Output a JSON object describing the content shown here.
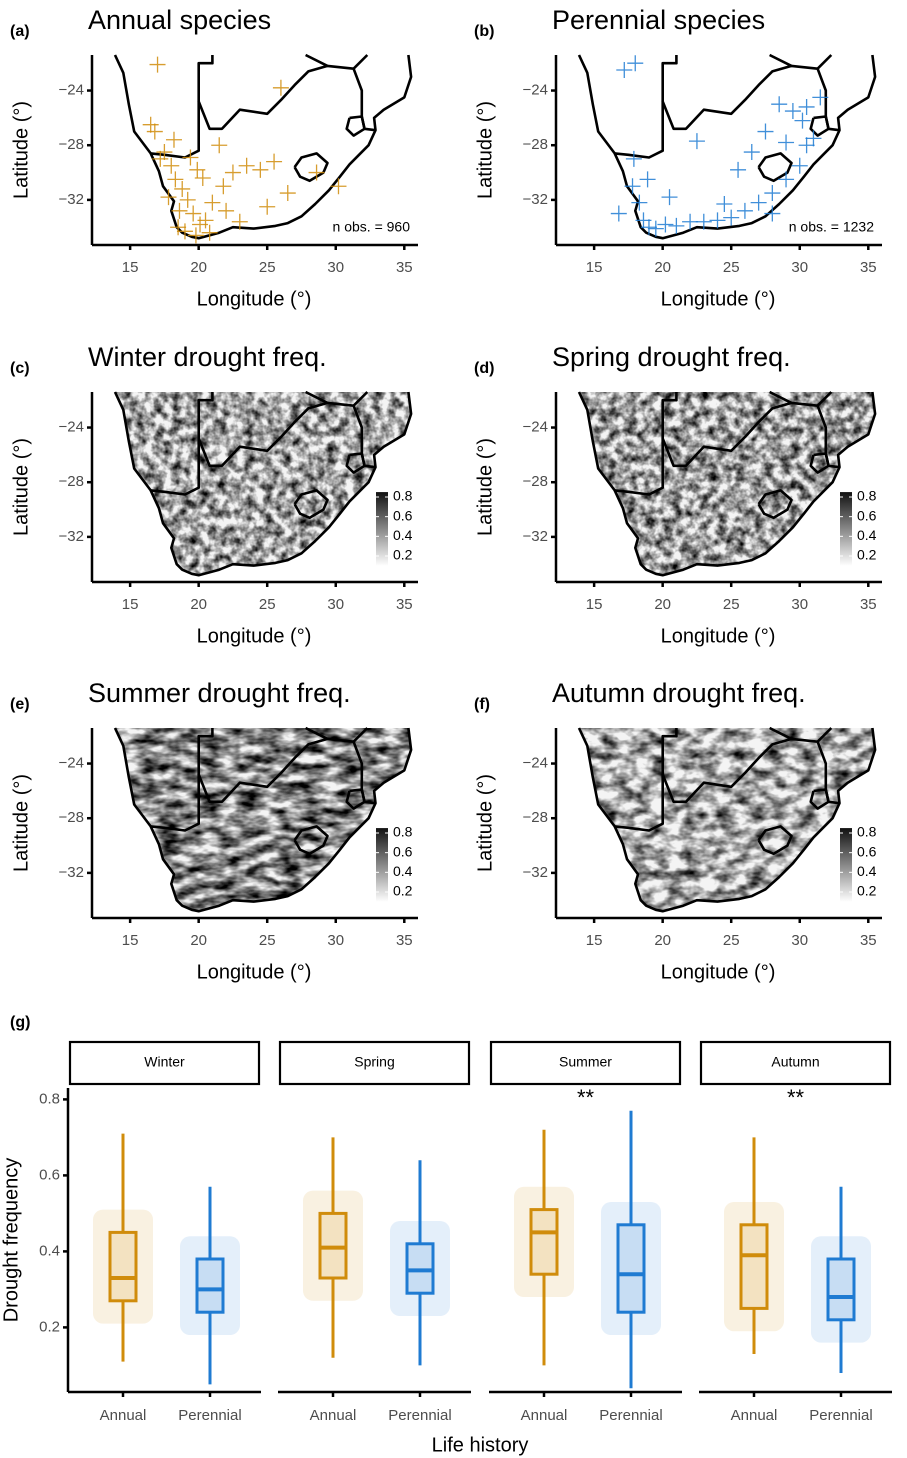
{
  "chart_data": [
    {
      "type": "scatter",
      "panel_label": "(a)",
      "title": "Annual species",
      "xlabel": "Longitude (°)",
      "ylabel": "Latitude (°)",
      "xlim": [
        12,
        36
      ],
      "ylim": [
        -35.3,
        -21.4
      ],
      "xticks": [
        15,
        20,
        25,
        30,
        35
      ],
      "yticks": [
        {
          "value": -24,
          "label": "−24"
        },
        {
          "value": -28,
          "label": "−28"
        },
        {
          "value": -32,
          "label": "−32"
        }
      ],
      "annotation": "n obs. = 960",
      "series": [
        {
          "color": "#d08c0b",
          "x": [
            17.0,
            16.8,
            17.5,
            18.0,
            18.3,
            18.8,
            19.2,
            19.6,
            20.1,
            20.5,
            21.0,
            21.8,
            22.5,
            23.5,
            24.5,
            25.5,
            26.5,
            18.5,
            19.0,
            19.8,
            20.3,
            17.8,
            18.6,
            19.4,
            22.0,
            23.0,
            17.2,
            16.5,
            18.2,
            19.9,
            26.0,
            28.6,
            30.2,
            25.0,
            21.5,
            20.8
          ],
          "y": [
            -22.1,
            -27.0,
            -28.5,
            -29.5,
            -30.5,
            -31.2,
            -32.0,
            -33.0,
            -33.8,
            -33.5,
            -32.2,
            -31.0,
            -30.0,
            -29.5,
            -29.8,
            -29.2,
            -31.5,
            -34.0,
            -34.3,
            -34.6,
            -30.4,
            -31.8,
            -32.8,
            -28.9,
            -32.8,
            -33.6,
            -29.0,
            -26.5,
            -27.6,
            -29.8,
            -23.8,
            -30.0,
            -31.0,
            -32.5,
            -28.0,
            -34.4
          ]
        }
      ]
    },
    {
      "type": "scatter",
      "panel_label": "(b)",
      "title": "Perennial species",
      "xlabel": "Longitude (°)",
      "ylabel": "Latitude (°)",
      "xlim": [
        12,
        36
      ],
      "ylim": [
        -35.3,
        -21.4
      ],
      "xticks": [
        15,
        20,
        25,
        30,
        35
      ],
      "yticks": [
        {
          "value": -24,
          "label": "−24"
        },
        {
          "value": -28,
          "label": "−28"
        },
        {
          "value": -32,
          "label": "−32"
        }
      ],
      "annotation": "n obs. = 1232",
      "series": [
        {
          "color": "#1f7bd2",
          "x": [
            17.2,
            17.8,
            18.3,
            18.6,
            19.0,
            19.5,
            20.2,
            21.0,
            22.0,
            23.0,
            24.0,
            25.0,
            26.0,
            27.0,
            28.0,
            29.0,
            30.0,
            30.5,
            31.0,
            29.5,
            28.5,
            27.5,
            26.5,
            25.5,
            30.5,
            31.5,
            29.0,
            22.5,
            20.5,
            18.9,
            17.9,
            16.8,
            18.0,
            28.0,
            24.5,
            30.2
          ],
          "y": [
            -22.5,
            -31.0,
            -32.2,
            -33.5,
            -34.0,
            -34.1,
            -33.8,
            -33.9,
            -33.6,
            -33.6,
            -33.5,
            -33.3,
            -32.8,
            -32.2,
            -31.5,
            -30.5,
            -29.5,
            -28.0,
            -27.5,
            -25.5,
            -25.0,
            -27.0,
            -28.5,
            -29.8,
            -25.2,
            -24.5,
            -27.8,
            -27.7,
            -31.8,
            -30.5,
            -29.0,
            -33.0,
            -22.0,
            -33.0,
            -32.3,
            -26.2
          ]
        }
      ]
    },
    {
      "type": "raster",
      "panel_label": "(c)",
      "title": "Winter drought freq.",
      "xlabel": "Longitude (°)",
      "ylabel": "Latitude (°)",
      "xlim": [
        12,
        36
      ],
      "ylim": [
        -35.3,
        -21.4
      ],
      "xticks": [
        15,
        20,
        25,
        30,
        35
      ],
      "yticks": [
        {
          "value": -24,
          "label": "−24"
        },
        {
          "value": -28,
          "label": "−28"
        },
        {
          "value": -32,
          "label": "−32"
        }
      ],
      "clim": [
        0.1,
        0.85
      ],
      "colorbar_ticks": [
        0.8,
        0.6,
        0.4,
        0.2
      ]
    },
    {
      "type": "raster",
      "panel_label": "(d)",
      "title": "Spring drought freq.",
      "xlabel": "Longitude (°)",
      "ylabel": "Latitude (°)",
      "xlim": [
        12,
        36
      ],
      "ylim": [
        -35.3,
        -21.4
      ],
      "xticks": [
        15,
        20,
        25,
        30,
        35
      ],
      "yticks": [
        {
          "value": -24,
          "label": "−24"
        },
        {
          "value": -28,
          "label": "−28"
        },
        {
          "value": -32,
          "label": "−32"
        }
      ],
      "clim": [
        0.1,
        0.85
      ],
      "colorbar_ticks": [
        0.8,
        0.6,
        0.4,
        0.2
      ]
    },
    {
      "type": "raster",
      "panel_label": "(e)",
      "title": "Summer drought freq.",
      "xlabel": "Longitude (°)",
      "ylabel": "Latitude (°)",
      "xlim": [
        12,
        36
      ],
      "ylim": [
        -35.3,
        -21.4
      ],
      "xticks": [
        15,
        20,
        25,
        30,
        35
      ],
      "yticks": [
        {
          "value": -24,
          "label": "−24"
        },
        {
          "value": -28,
          "label": "−28"
        },
        {
          "value": -32,
          "label": "−32"
        }
      ],
      "clim": [
        0.1,
        0.85
      ],
      "colorbar_ticks": [
        0.8,
        0.6,
        0.4,
        0.2
      ]
    },
    {
      "type": "raster",
      "panel_label": "(f)",
      "title": "Autumn drought freq.",
      "xlabel": "Longitude (°)",
      "ylabel": "Latitude (°)",
      "xlim": [
        12,
        36
      ],
      "ylim": [
        -35.3,
        -21.4
      ],
      "xticks": [
        15,
        20,
        25,
        30,
        35
      ],
      "yticks": [
        {
          "value": -24,
          "label": "−24"
        },
        {
          "value": -28,
          "label": "−28"
        },
        {
          "value": -32,
          "label": "−32"
        }
      ],
      "clim": [
        0.1,
        0.85
      ],
      "colorbar_ticks": [
        0.8,
        0.6,
        0.4,
        0.2
      ]
    },
    {
      "type": "boxplot",
      "panel_label": "(g)",
      "xlabel": "Life history",
      "ylabel": "Drought frequency",
      "categories": [
        "Annual",
        "Perennial"
      ],
      "colors": [
        "#d08c0b",
        "#1f7bd2"
      ],
      "ylim": [
        0.03,
        0.83
      ],
      "yticks": [
        0.2,
        0.4,
        0.6,
        0.8
      ],
      "facets": [
        {
          "title": "Winter",
          "boxes": [
            {
              "min": 0.11,
              "q1": 0.27,
              "median": 0.33,
              "q3": 0.45,
              "max": 0.71
            },
            {
              "min": 0.05,
              "q1": 0.24,
              "median": 0.3,
              "q3": 0.38,
              "max": 0.57
            }
          ]
        },
        {
          "title": "Spring",
          "boxes": [
            {
              "min": 0.12,
              "q1": 0.33,
              "median": 0.41,
              "q3": 0.5,
              "max": 0.7
            },
            {
              "min": 0.1,
              "q1": 0.29,
              "median": 0.35,
              "q3": 0.42,
              "max": 0.64
            }
          ]
        },
        {
          "title": "Summer",
          "annotation": "**",
          "boxes": [
            {
              "min": 0.1,
              "q1": 0.34,
              "median": 0.45,
              "q3": 0.51,
              "max": 0.72
            },
            {
              "min": 0.04,
              "q1": 0.24,
              "median": 0.34,
              "q3": 0.47,
              "max": 0.77
            }
          ]
        },
        {
          "title": "Autumn",
          "annotation": "**",
          "boxes": [
            {
              "min": 0.13,
              "q1": 0.25,
              "median": 0.39,
              "q3": 0.47,
              "max": 0.7
            },
            {
              "min": 0.08,
              "q1": 0.22,
              "median": 0.28,
              "q3": 0.38,
              "max": 0.57
            }
          ]
        }
      ]
    }
  ]
}
